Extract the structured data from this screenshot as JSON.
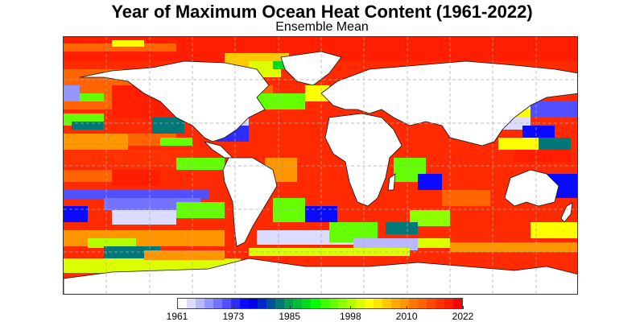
{
  "title": "Year of Maximum Ocean Heat Content (1961-2022)",
  "subtitle": "Ensemble Mean",
  "chart_data": {
    "type": "heatmap",
    "title": "Year of Maximum Ocean Heat Content (1961-2022)",
    "subtitle": "Ensemble Mean",
    "projection": "global equirectangular (lon -180..180, lat -90..90)",
    "grid": true,
    "colorbar": {
      "orientation": "horizontal",
      "position": "bottom",
      "range": [
        1961,
        2022
      ],
      "ticks": [
        1961,
        1973,
        1985,
        1998,
        2010,
        2022
      ],
      "colors": [
        "#ffffff",
        "#dcdcff",
        "#b9b9ff",
        "#9696ff",
        "#7373ff",
        "#5050ff",
        "#2d2dff",
        "#0a0aff",
        "#0000e6",
        "#0028c8",
        "#0050a0",
        "#007878",
        "#00a050",
        "#00be3c",
        "#00dc1e",
        "#00ff00",
        "#3cff00",
        "#64ff00",
        "#8cff00",
        "#b4ff00",
        "#dcff00",
        "#ffff00",
        "#ffe600",
        "#ffc800",
        "#ffaa00",
        "#ff9600",
        "#ff7800",
        "#ff6400",
        "#ff4b00",
        "#ff3200",
        "#ff1e00",
        "#ff0000"
      ]
    },
    "summary": "Most ocean regions reach maximum heat content in recent years (2010-2022, orange/red), especially the Arctic margins, Mediterranean, North Indian Ocean, western Pacific and Southern Ocean north of Antarctica; scattered earlier-year patches (1961-1990, white/blue/teal/green) occur in the North Atlantic subpolar gyre, tropical/subtropical South Pacific, South Atlantic, Southern Ocean near Antarctica and east of Japan/Australia."
  }
}
